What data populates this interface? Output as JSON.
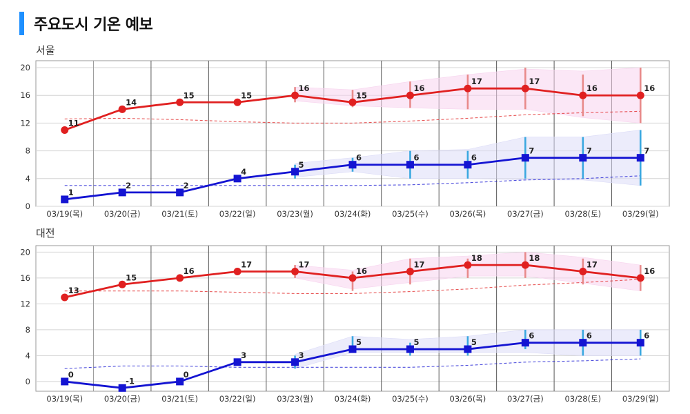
{
  "page": {
    "title": "주요도시 기온 예보"
  },
  "colors": {
    "accent": "#1e90ff",
    "high_line": "#e02020",
    "high_band": "#f7d4ee",
    "high_err": "#e88a8a",
    "low_line": "#1414d2",
    "low_band": "#dcdcf7",
    "low_err": "#3aa8e0"
  },
  "chart_data": [
    {
      "type": "line",
      "title": "서울",
      "categories": [
        "03/19(목)",
        "03/20(금)",
        "03/21(토)",
        "03/22(일)",
        "03/23(월)",
        "03/24(화)",
        "03/25(수)",
        "03/26(목)",
        "03/27(금)",
        "03/28(토)",
        "03/29(일)"
      ],
      "yticks": [
        0,
        4,
        8,
        12,
        16,
        20
      ],
      "ylim": [
        0,
        21
      ],
      "grid": true,
      "series": [
        {
          "kind": "high",
          "values": [
            11,
            14,
            15,
            15,
            16,
            15,
            16,
            17,
            17,
            16,
            16
          ],
          "labels": [
            "11",
            "14",
            "15",
            "15",
            "16",
            "15",
            "16",
            "17",
            "17",
            "16",
            "16"
          ],
          "normal": [
            12.6,
            12.7,
            12.5,
            12.2,
            12.0,
            12.0,
            12.3,
            12.7,
            13.2,
            13.5,
            13.7
          ],
          "band_upper": [
            null,
            null,
            null,
            null,
            17.2,
            16.8,
            18.0,
            19.0,
            19.8,
            19.5,
            20.0
          ],
          "band_lower": [
            null,
            null,
            null,
            null,
            15.2,
            14.5,
            14.2,
            14.0,
            14.0,
            12.8,
            12.0
          ],
          "err_upper": [
            null,
            null,
            null,
            null,
            17.2,
            16.8,
            18.0,
            19.0,
            20.0,
            19.0,
            20.0
          ],
          "err_lower": [
            null,
            null,
            null,
            null,
            15.0,
            14.3,
            14.2,
            14.0,
            14.0,
            13.0,
            12.0
          ]
        },
        {
          "kind": "low",
          "values": [
            1,
            2,
            2,
            4,
            5,
            6,
            6,
            6,
            7,
            7,
            7
          ],
          "labels": [
            "1",
            "2",
            "2",
            "4",
            "5",
            "6",
            "6",
            "6",
            "7",
            "7",
            "7"
          ],
          "normal": [
            3.0,
            3.0,
            3.0,
            3.0,
            3.0,
            3.0,
            3.1,
            3.4,
            3.8,
            4.0,
            4.4
          ],
          "band_upper": [
            null,
            null,
            null,
            null,
            6.2,
            7.0,
            8.0,
            8.2,
            10.0,
            10.0,
            11.0
          ],
          "band_lower": [
            null,
            null,
            null,
            null,
            4.2,
            5.0,
            4.0,
            4.0,
            3.8,
            3.8,
            3.0
          ],
          "err_upper": [
            null,
            null,
            null,
            null,
            6.0,
            7.0,
            8.0,
            8.0,
            10.0,
            10.0,
            11.0
          ],
          "err_lower": [
            null,
            null,
            null,
            null,
            4.0,
            5.0,
            4.0,
            4.0,
            4.0,
            4.0,
            3.0
          ]
        }
      ]
    },
    {
      "type": "line",
      "title": "대전",
      "categories": [
        "03/19(목)",
        "03/20(금)",
        "03/21(토)",
        "03/22(일)",
        "03/23(월)",
        "03/24(화)",
        "03/25(수)",
        "03/26(목)",
        "03/27(금)",
        "03/28(토)",
        "03/29(일)"
      ],
      "yticks": [
        0,
        4,
        8,
        12,
        16,
        20
      ],
      "ylim": [
        -1.5,
        21
      ],
      "grid": true,
      "series": [
        {
          "kind": "high",
          "values": [
            13,
            15,
            16,
            17,
            17,
            16,
            17,
            18,
            18,
            17,
            16
          ],
          "labels": [
            "13",
            "15",
            "16",
            "17",
            "17",
            "16",
            "17",
            "18",
            "18",
            "17",
            "16"
          ],
          "normal": [
            14.0,
            14.0,
            14.0,
            13.8,
            13.6,
            13.6,
            13.9,
            14.3,
            14.9,
            15.3,
            15.8
          ],
          "band_upper": [
            null,
            null,
            null,
            null,
            18.0,
            17.2,
            19.0,
            19.4,
            20.0,
            19.2,
            18.0
          ],
          "band_lower": [
            null,
            null,
            null,
            null,
            16.0,
            14.3,
            15.3,
            16.3,
            16.3,
            15.2,
            14.0
          ],
          "err_upper": [
            null,
            null,
            null,
            null,
            18.0,
            17.0,
            19.0,
            19.0,
            20.0,
            19.0,
            18.0
          ],
          "err_lower": [
            null,
            null,
            null,
            null,
            16.0,
            14.0,
            15.0,
            16.0,
            16.0,
            15.0,
            14.0
          ]
        },
        {
          "kind": "low",
          "values": [
            0,
            -1,
            0,
            3,
            3,
            5,
            5,
            5,
            6,
            6,
            6
          ],
          "labels": [
            "0",
            "-1",
            "0",
            "3",
            "3",
            "5",
            "5",
            "5",
            "6",
            "6",
            "6"
          ],
          "normal": [
            2.0,
            2.4,
            2.4,
            2.2,
            2.2,
            2.2,
            2.2,
            2.5,
            3.0,
            3.2,
            3.5
          ],
          "band_upper": [
            null,
            null,
            null,
            null,
            4.2,
            7.0,
            6.5,
            7.0,
            8.0,
            8.0,
            8.0
          ],
          "band_lower": [
            null,
            null,
            null,
            null,
            2.0,
            4.5,
            4.5,
            4.5,
            4.5,
            4.0,
            4.0
          ],
          "err_upper": [
            null,
            null,
            null,
            null,
            4.0,
            7.0,
            6.0,
            7.0,
            8.0,
            8.0,
            8.0
          ],
          "err_lower": [
            null,
            null,
            null,
            null,
            2.0,
            4.5,
            4.0,
            4.0,
            5.0,
            4.0,
            4.0
          ]
        }
      ]
    }
  ]
}
